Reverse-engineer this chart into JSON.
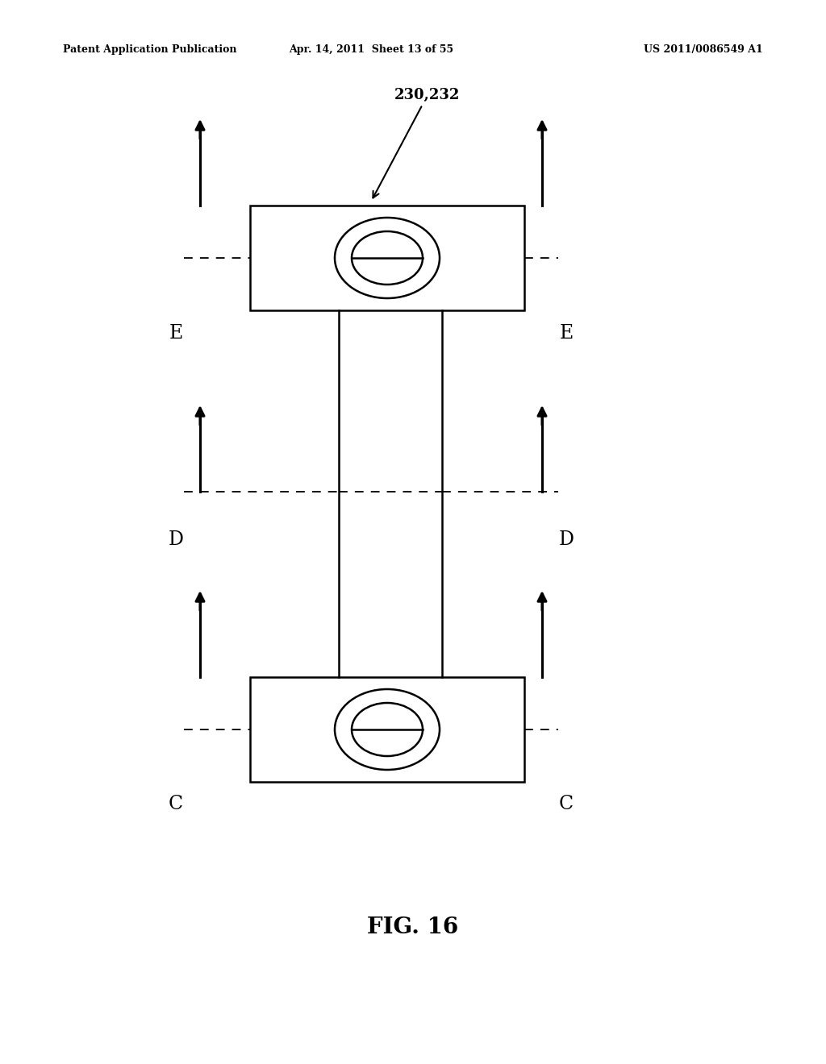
{
  "title": "FIG. 16",
  "header_left": "Patent Application Publication",
  "header_center": "Apr. 14, 2011  Sheet 13 of 55",
  "header_right": "US 2011/0086549 A1",
  "label_annotation": "230,232",
  "label_E_left": "E",
  "label_E_right": "E",
  "label_D_left": "D",
  "label_D_right": "D",
  "label_C_left": "C",
  "label_C_right": "C",
  "bg_color": "#ffffff",
  "line_color": "#000000"
}
